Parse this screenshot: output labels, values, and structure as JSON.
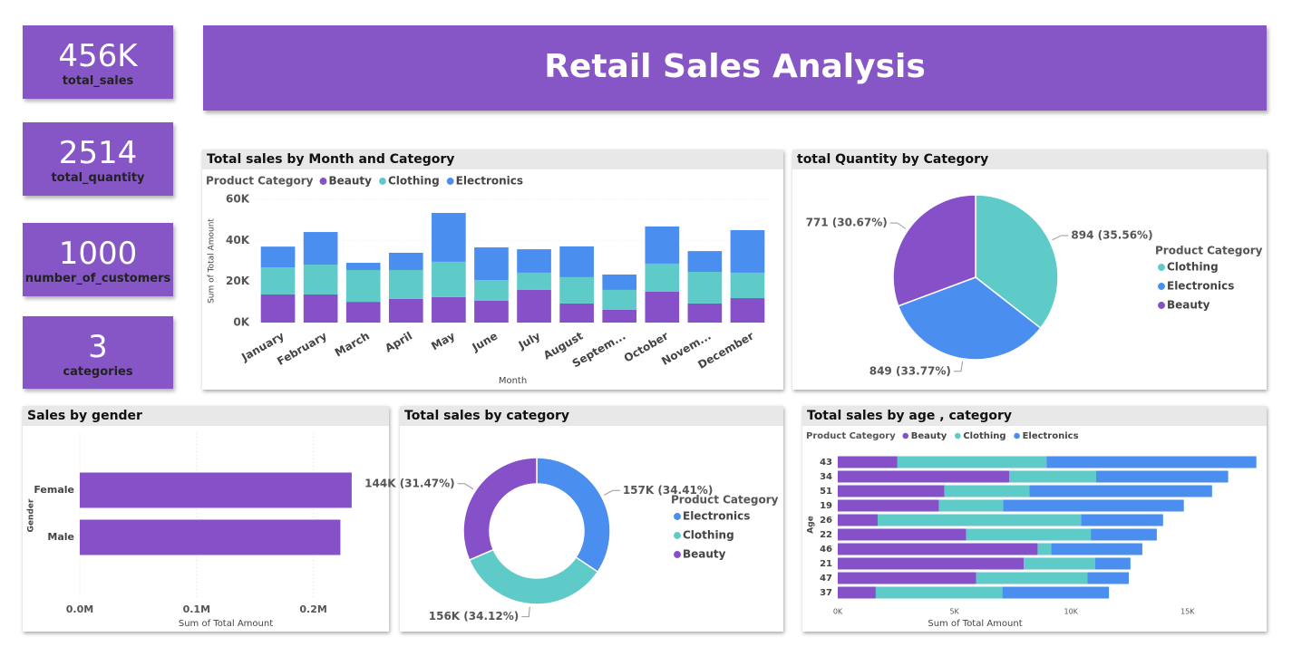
{
  "title": "Retail Sales Analysis",
  "kpis": [
    {
      "value": "456K",
      "label": "total_sales"
    },
    {
      "value": "2514",
      "label": "total_quantity"
    },
    {
      "value": "1000",
      "label": "number_of_customers"
    },
    {
      "value": "3",
      "label": "categories"
    }
  ],
  "chart_data": [
    {
      "type": "bar",
      "orientation": "vertical",
      "stacked": true,
      "title": "Total sales by Month and Category",
      "legend_title": "Product Category",
      "x_label": "Month",
      "y_label": "Sum of Total Amount",
      "categories": [
        "January",
        "February",
        "March",
        "April",
        "May",
        "June",
        "July",
        "August",
        "Septem...",
        "October",
        "Novem...",
        "December"
      ],
      "series": [
        {
          "name": "Beauty",
          "color": "#8651c8",
          "values": [
            13700,
            13700,
            10100,
            11500,
            12400,
            10600,
            15900,
            9300,
            6200,
            15000,
            9300,
            11900
          ]
        },
        {
          "name": "Clothing",
          "color": "#5ecbc8",
          "values": [
            13200,
            14500,
            15500,
            14100,
            17200,
            10100,
            8400,
            12800,
            9700,
            13700,
            15400,
            12400
          ]
        },
        {
          "name": "Electronics",
          "color": "#4a8ff0",
          "values": [
            10100,
            15900,
            3500,
            8400,
            23800,
            15900,
            11400,
            15000,
            7500,
            18100,
            10100,
            20700
          ]
        }
      ],
      "ylim": [
        0,
        60000
      ],
      "yticks": [
        {
          "value": 0,
          "label": "0K"
        },
        {
          "value": 20000,
          "label": "20K"
        },
        {
          "value": 40000,
          "label": "40K"
        },
        {
          "value": 60000,
          "label": "60K"
        }
      ],
      "grid": true
    },
    {
      "type": "pie",
      "title": "total Quantity by Category",
      "legend_title": "Product Category",
      "categories": [
        "Clothing",
        "Electronics",
        "Beauty"
      ],
      "values": [
        894,
        849,
        771
      ],
      "value_labels": [
        "894 (35.56%)",
        "849 (33.77%)",
        "771 (30.67%)"
      ],
      "colors": [
        "#5ecbc8",
        "#4a8ff0",
        "#8651c8"
      ]
    },
    {
      "type": "bar",
      "orientation": "horizontal",
      "title": "Sales by gender",
      "x_label": "Sum of Total Amount",
      "y_label": "Gender",
      "categories": [
        "Female",
        "Male"
      ],
      "values": [
        232840,
        223160
      ],
      "color": "#8651c8",
      "xlim": [
        0,
        250000
      ],
      "xticks": [
        {
          "value": 0,
          "label": "0.0M"
        },
        {
          "value": 100000,
          "label": "0.1M"
        },
        {
          "value": 200000,
          "label": "0.2M"
        }
      ],
      "grid": true
    },
    {
      "type": "donut",
      "title": "Total sales by category",
      "legend_title": "Product Category",
      "categories": [
        "Electronics",
        "Clothing",
        "Beauty"
      ],
      "values": [
        156905,
        155580,
        143515
      ],
      "value_labels": [
        "157K (34.41%)",
        "156K (34.12%)",
        "144K (31.47%)"
      ],
      "colors": [
        "#4a8ff0",
        "#5ecbc8",
        "#8651c8"
      ]
    },
    {
      "type": "bar",
      "orientation": "horizontal",
      "stacked": true,
      "title": "Total sales by age , category",
      "legend_title": "Product Category",
      "x_label": "Sum of Total Amount",
      "y_label": "Age",
      "categories": [
        "43",
        "34",
        "51",
        "19",
        "26",
        "22",
        "46",
        "21",
        "47",
        "37"
      ],
      "series": [
        {
          "name": "Beauty",
          "color": "#8651c8",
          "values": [
            2560,
            7360,
            4570,
            4340,
            1710,
            5500,
            8570,
            7980,
            5930,
            1630
          ]
        },
        {
          "name": "Clothing",
          "color": "#5ecbc8",
          "values": [
            6390,
            3720,
            3650,
            2750,
            8720,
            5350,
            580,
            3060,
            4770,
            5430
          ]
        },
        {
          "name": "Electronics",
          "color": "#4a8ff0",
          "values": [
            9000,
            5660,
            7830,
            7750,
            3520,
            2830,
            3910,
            1510,
            1780,
            4570
          ]
        }
      ],
      "xlim": [
        0,
        18000
      ],
      "xticks": [
        {
          "value": 0,
          "label": "0K"
        },
        {
          "value": 5000,
          "label": "5K"
        },
        {
          "value": 10000,
          "label": "10K"
        },
        {
          "value": 15000,
          "label": "15K"
        }
      ],
      "grid": false
    }
  ]
}
